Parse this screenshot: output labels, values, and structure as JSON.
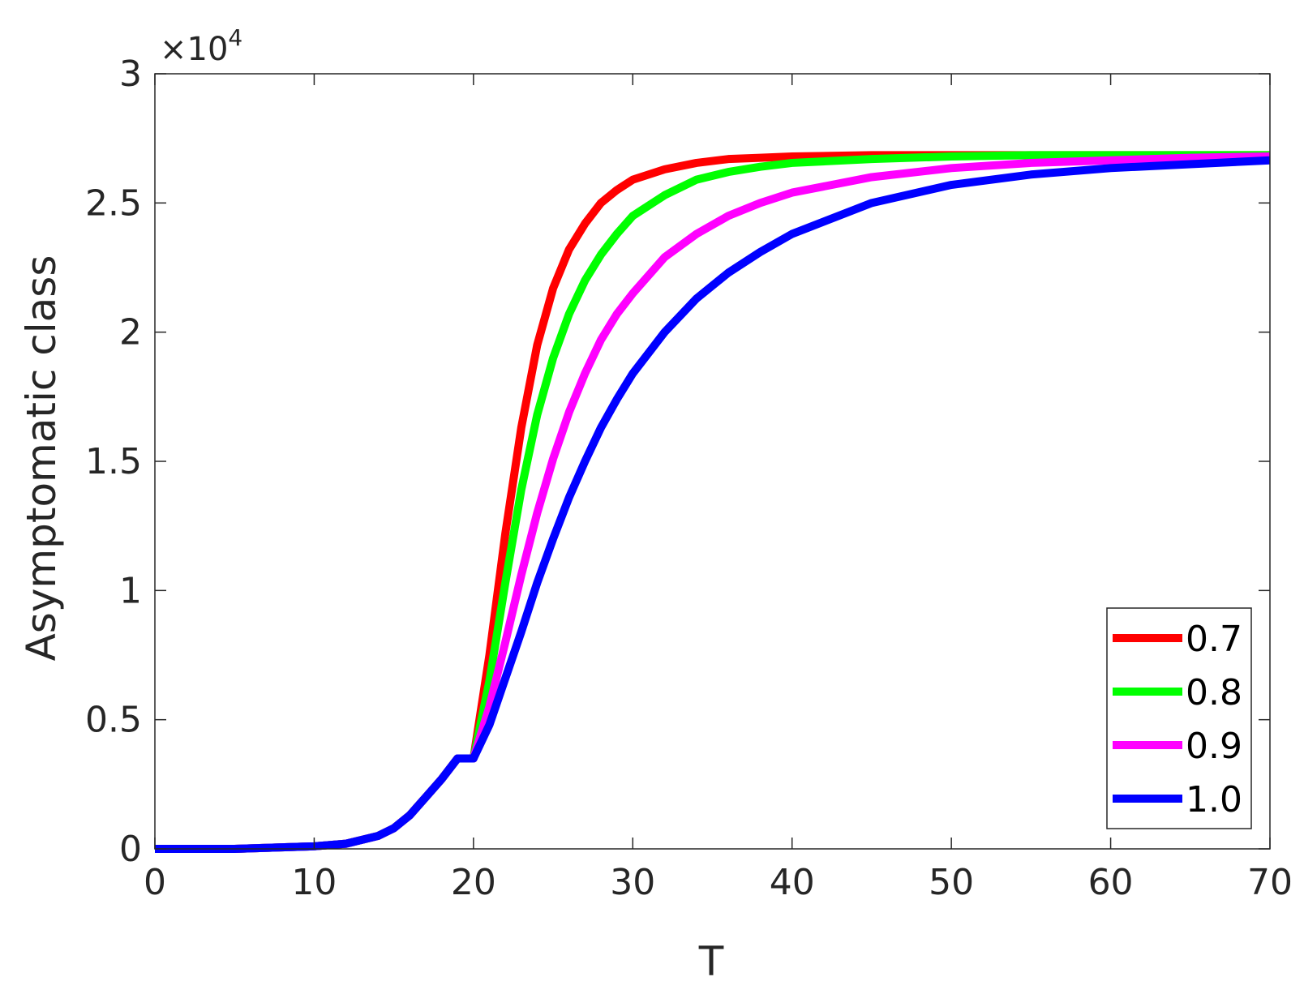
{
  "chart_data": {
    "type": "line",
    "title": "",
    "xlabel": "T",
    "ylabel": "Asymptomatic class",
    "xlim": [
      0,
      70
    ],
    "ylim": [
      0,
      3
    ],
    "y_multiplier": {
      "times": "×",
      "base": "10",
      "exponent": "4"
    },
    "xticks": [
      0,
      10,
      20,
      30,
      40,
      50,
      60,
      70
    ],
    "xtick_labels": [
      "0",
      "10",
      "20",
      "30",
      "40",
      "50",
      "60",
      "70"
    ],
    "yticks": [
      0,
      0.5,
      1,
      1.5,
      2,
      2.5,
      3
    ],
    "ytick_labels": [
      "0",
      "0.5",
      "1",
      "1.5",
      "2",
      "2.5",
      "3"
    ],
    "grid": false,
    "legend_position": "bottom-right",
    "series": [
      {
        "name": "0.7",
        "color": "#ff0000",
        "x": [
          0,
          5,
          10,
          12,
          14,
          15,
          16,
          17,
          18,
          19,
          20,
          21,
          22,
          23,
          24,
          25,
          26,
          27,
          28,
          29,
          30,
          32,
          34,
          36,
          38,
          40,
          45,
          50,
          55,
          60,
          65,
          70
        ],
        "y": [
          0,
          0,
          0.01,
          0.02,
          0.05,
          0.08,
          0.13,
          0.2,
          0.27,
          0.35,
          0.35,
          0.75,
          1.22,
          1.63,
          1.95,
          2.17,
          2.32,
          2.42,
          2.5,
          2.55,
          2.59,
          2.63,
          2.655,
          2.67,
          2.675,
          2.68,
          2.685,
          2.685,
          2.685,
          2.685,
          2.685,
          2.685
        ]
      },
      {
        "name": "0.8",
        "color": "#00ff00",
        "x": [
          0,
          5,
          10,
          12,
          14,
          15,
          16,
          17,
          18,
          19,
          20,
          21,
          22,
          23,
          24,
          25,
          26,
          27,
          28,
          29,
          30,
          32,
          34,
          36,
          38,
          40,
          45,
          50,
          55,
          60,
          65,
          70
        ],
        "y": [
          0,
          0,
          0.01,
          0.02,
          0.05,
          0.08,
          0.13,
          0.2,
          0.27,
          0.35,
          0.35,
          0.65,
          1.03,
          1.39,
          1.68,
          1.9,
          2.07,
          2.2,
          2.3,
          2.38,
          2.45,
          2.53,
          2.59,
          2.62,
          2.64,
          2.655,
          2.67,
          2.68,
          2.685,
          2.685,
          2.685,
          2.685
        ]
      },
      {
        "name": "0.9",
        "color": "#ff00ff",
        "x": [
          0,
          5,
          10,
          12,
          14,
          15,
          16,
          17,
          18,
          19,
          20,
          21,
          22,
          23,
          24,
          25,
          26,
          27,
          28,
          29,
          30,
          32,
          34,
          36,
          38,
          40,
          45,
          50,
          55,
          60,
          65,
          70
        ],
        "y": [
          0,
          0,
          0.01,
          0.02,
          0.05,
          0.08,
          0.13,
          0.2,
          0.27,
          0.35,
          0.35,
          0.55,
          0.8,
          1.06,
          1.3,
          1.51,
          1.69,
          1.84,
          1.97,
          2.07,
          2.15,
          2.29,
          2.38,
          2.45,
          2.5,
          2.54,
          2.6,
          2.635,
          2.655,
          2.665,
          2.675,
          2.68
        ]
      },
      {
        "name": "1.0",
        "color": "#0000ff",
        "x": [
          0,
          5,
          10,
          12,
          14,
          15,
          16,
          17,
          18,
          19,
          20,
          21,
          22,
          23,
          24,
          25,
          26,
          27,
          28,
          29,
          30,
          32,
          34,
          36,
          38,
          40,
          45,
          50,
          55,
          60,
          65,
          70
        ],
        "y": [
          0,
          0,
          0.01,
          0.02,
          0.05,
          0.08,
          0.13,
          0.2,
          0.27,
          0.35,
          0.35,
          0.48,
          0.66,
          0.84,
          1.03,
          1.2,
          1.36,
          1.5,
          1.63,
          1.74,
          1.84,
          2.0,
          2.13,
          2.23,
          2.31,
          2.38,
          2.5,
          2.57,
          2.61,
          2.635,
          2.65,
          2.665
        ]
      }
    ]
  }
}
